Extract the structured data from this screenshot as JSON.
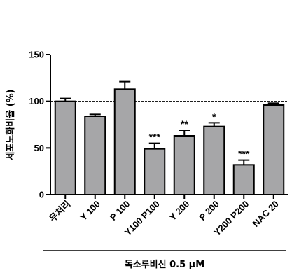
{
  "chart_data": {
    "type": "bar",
    "title": "",
    "ylabel": "세포노화비율 (%)",
    "xlabel": "독소루비신 0.5 μM",
    "ylim": [
      0,
      150
    ],
    "yticks": [
      0,
      50,
      100,
      150
    ],
    "reference_line": 100,
    "reference_line_style": "dashed",
    "bar_color": "#a6a6a8",
    "categories": [
      "무처리",
      "Y 100",
      "P 100",
      "Y100 P100",
      "Y 200",
      "P 200",
      "Y200 P200",
      "NAC 20"
    ],
    "values": [
      100,
      84,
      113,
      49,
      63,
      73,
      32,
      96
    ],
    "errors": [
      3,
      2,
      8,
      6,
      6,
      4,
      5,
      2
    ],
    "significance": [
      "",
      "",
      "",
      "***",
      "**",
      "*",
      "***",
      ""
    ]
  }
}
